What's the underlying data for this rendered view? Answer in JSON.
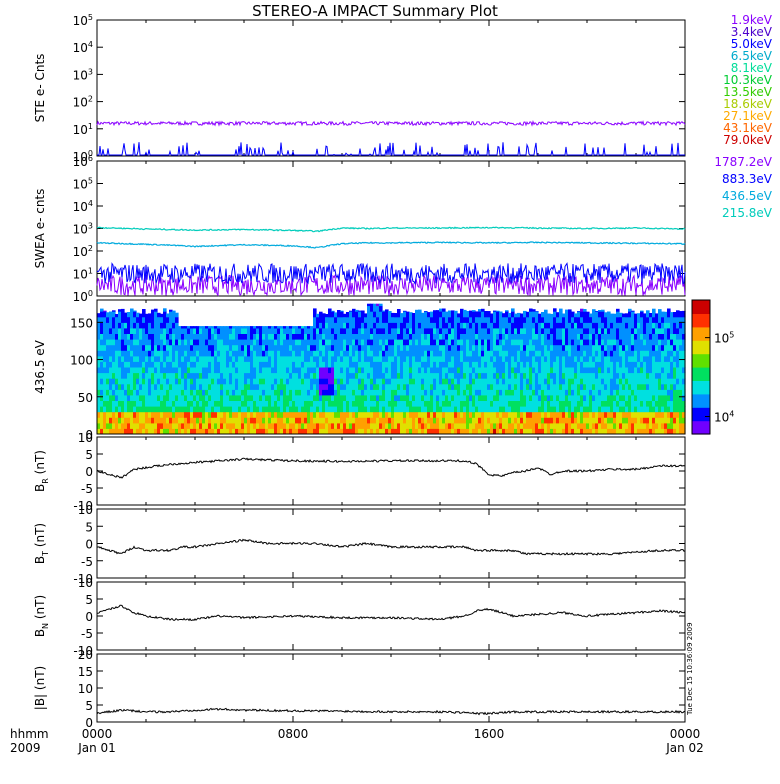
{
  "title": "STEREO-A IMPACT Summary Plot",
  "stamp": "Tue Dec 15 10:36:09 2009",
  "time_axis": {
    "row1_left": "hhmm",
    "row2_left": "2009",
    "ticks": [
      {
        "t": 0,
        "top": "0000",
        "bottom": "Jan 01"
      },
      {
        "t": 8,
        "top": "0800",
        "bottom": ""
      },
      {
        "t": 16,
        "top": "1600",
        "bottom": ""
      },
      {
        "t": 24,
        "top": "0000",
        "bottom": "Jan 02"
      }
    ],
    "range_hours": [
      0,
      24
    ]
  },
  "colors": {
    "ste_channels": [
      "#8a00ff",
      "#4b00cc",
      "#0000ff",
      "#00aacc",
      "#00dd99",
      "#00cc33",
      "#33cc00",
      "#aacc00",
      "#ffaa00",
      "#ff6600",
      "#cc0000"
    ],
    "swea_channels": [
      "#8a00ff",
      "#0000ff",
      "#00aadd",
      "#00ccbb"
    ],
    "colorbar": [
      "#7000ff",
      "#0000ff",
      "#0090ff",
      "#00e0e0",
      "#00e060",
      "#60e000",
      "#e0e000",
      "#ffa000",
      "#ff3000",
      "#cc0000"
    ]
  },
  "chart_data": [
    {
      "type": "line",
      "panel": "ste",
      "ylabel": "STE e- Cnts",
      "yscale": "log",
      "ylim": [
        1,
        100000
      ],
      "yticks": [
        "10^0",
        "10^1",
        "10^2",
        "10^3",
        "10^4",
        "10^5"
      ],
      "legend": [
        "1.9keV",
        "3.4keV",
        "5.0keV",
        "6.5keV",
        "8.1keV",
        "10.3keV",
        "13.5keV",
        "18.6keV",
        "27.1keV",
        "43.1keV",
        "79.0keV"
      ],
      "series": [
        {
          "name": "1.9keV",
          "approx_level": 16
        },
        {
          "name": "3.4keV",
          "approx_level": 1
        }
      ]
    },
    {
      "type": "line",
      "panel": "swea",
      "ylabel": "SWEA e- cnts",
      "yscale": "log",
      "ylim": [
        1,
        1000000
      ],
      "yticks": [
        "10^0",
        "10^1",
        "10^2",
        "10^3",
        "10^4",
        "10^5",
        "10^6"
      ],
      "legend": [
        "1787.2eV",
        "883.3eV",
        "436.5eV",
        "215.8eV"
      ],
      "series": [
        {
          "name": "215.8eV",
          "x": [
            0,
            2,
            4,
            6,
            8,
            9,
            10,
            11,
            12,
            14,
            16,
            18,
            20,
            22,
            24
          ],
          "y": [
            1100,
            950,
            850,
            900,
            820,
            750,
            1050,
            1000,
            1050,
            1050,
            1100,
            1050,
            1000,
            1050,
            950
          ]
        },
        {
          "name": "436.5eV",
          "x": [
            0,
            2,
            4,
            6,
            8,
            9,
            10,
            11,
            12,
            14,
            16,
            18,
            20,
            22,
            24
          ],
          "y": [
            230,
            200,
            160,
            190,
            170,
            140,
            210,
            230,
            230,
            240,
            230,
            240,
            230,
            220,
            210
          ]
        },
        {
          "name": "883.3eV",
          "approx_level": 10
        },
        {
          "name": "1787.2eV",
          "approx_level": 3
        }
      ]
    },
    {
      "type": "heatmap",
      "panel": "spectrogram",
      "ylabel": "436.5 eV",
      "ylim": [
        0,
        180
      ],
      "yticks": [
        0,
        50,
        100,
        150
      ],
      "colorbar_ticks": [
        "10^4",
        "10^5"
      ],
      "colorbar_range": [
        6000,
        300000
      ]
    },
    {
      "type": "line",
      "panel": "br",
      "ylabel": "B",
      "ysub": "R",
      "yunit": " (nT)",
      "ylim": [
        -10,
        10
      ],
      "yticks": [
        -10,
        -5,
        0,
        5,
        10
      ],
      "x": [
        0,
        0.5,
        1,
        1.5,
        2,
        3,
        4,
        5,
        6,
        8,
        10,
        12,
        14,
        15,
        15.5,
        16,
        16.5,
        17,
        17.5,
        18,
        18.5,
        19,
        20,
        21,
        22,
        23,
        24
      ],
      "y": [
        0,
        -1,
        -2,
        0.5,
        1,
        2,
        2.5,
        3,
        3.5,
        3,
        2.8,
        3,
        3,
        3,
        2,
        -1,
        -1.5,
        -0.5,
        0,
        1,
        -1,
        0,
        0,
        0.5,
        0.5,
        1.5,
        1.5
      ]
    },
    {
      "type": "line",
      "panel": "bt",
      "ylabel": "B",
      "ysub": "T",
      "yunit": " (nT)",
      "ylim": [
        -10,
        10
      ],
      "yticks": [
        -10,
        -5,
        0,
        5,
        10
      ],
      "x": [
        0,
        0.5,
        1,
        1.5,
        2,
        3,
        3.5,
        4,
        5,
        6,
        7,
        8,
        9,
        10,
        11,
        12,
        13,
        14,
        15,
        15.5,
        16,
        17,
        17.5,
        18,
        19,
        20,
        21,
        22,
        23,
        24
      ],
      "y": [
        -1,
        -2,
        -3,
        -1,
        -2,
        -2,
        -1,
        -1,
        0,
        1,
        0,
        0,
        0,
        -1,
        0,
        -1,
        -1,
        -1,
        -1,
        -2,
        -2,
        -2,
        -3,
        -3,
        -3,
        -3,
        -3,
        -2.5,
        -2,
        -2
      ]
    },
    {
      "type": "line",
      "panel": "bn",
      "ylabel": "B",
      "ysub": "N",
      "yunit": " (nT)",
      "ylim": [
        -10,
        10
      ],
      "yticks": [
        -10,
        -5,
        0,
        5,
        10
      ],
      "x": [
        0,
        0.5,
        1,
        1.5,
        2,
        3,
        4,
        5,
        6,
        8,
        10,
        12,
        14,
        15,
        15.5,
        16,
        17,
        18,
        19,
        20,
        22,
        23,
        24
      ],
      "y": [
        1,
        2,
        3,
        1,
        0,
        -1,
        -1,
        0,
        -0.5,
        0,
        -0.5,
        -0.5,
        -1,
        0,
        1.5,
        2,
        0,
        0.5,
        1,
        0,
        1,
        1.5,
        1
      ]
    },
    {
      "type": "line",
      "panel": "b",
      "ylabel": "|B| (nT)",
      "ylim": [
        0,
        20
      ],
      "yticks": [
        0,
        5,
        10,
        15,
        20
      ],
      "x": [
        0,
        0.5,
        1,
        2,
        3,
        4,
        5,
        6,
        8,
        10,
        12,
        14,
        15,
        15.5,
        16,
        17,
        18,
        20,
        22,
        24
      ],
      "y": [
        2.5,
        3,
        3.5,
        3,
        3,
        3.5,
        3.8,
        3.5,
        3.3,
        3.2,
        3,
        3,
        2.8,
        2.5,
        2.5,
        3,
        3,
        3,
        3,
        3
      ]
    }
  ]
}
